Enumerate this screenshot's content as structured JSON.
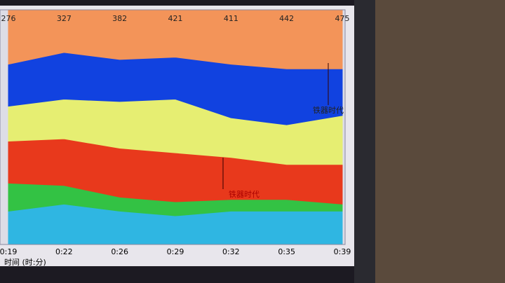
{
  "chart_data": {
    "type": "area",
    "top_labels": [
      276,
      327,
      382,
      421,
      411,
      442,
      475
    ],
    "categories": [
      "0:19",
      "0:22",
      "0:26",
      "0:29",
      "0:32",
      "0:35",
      "0:39"
    ],
    "x_label": "时间 (时:分)",
    "ylim": [
      0,
      100
    ],
    "series": [
      {
        "color": "#2fb6e2",
        "values": [
          14,
          17,
          14,
          12,
          14,
          14,
          14
        ]
      },
      {
        "color": "#33c244",
        "values": [
          12,
          8,
          6,
          6,
          5,
          5,
          3
        ]
      },
      {
        "color": "#e8391c",
        "values": [
          18,
          20,
          21,
          21,
          18,
          15,
          17
        ]
      },
      {
        "color": "#e6ee72",
        "values": [
          15,
          17,
          20,
          23,
          17,
          17,
          21
        ]
      },
      {
        "color": "#1142e0",
        "values": [
          18,
          20,
          18,
          18,
          23,
          24,
          20
        ]
      },
      {
        "color": "#f39459",
        "values": [
          23,
          18,
          21,
          20,
          23,
          25,
          25
        ]
      }
    ],
    "annotations": [
      "铁器时代",
      "铁器时代"
    ]
  }
}
